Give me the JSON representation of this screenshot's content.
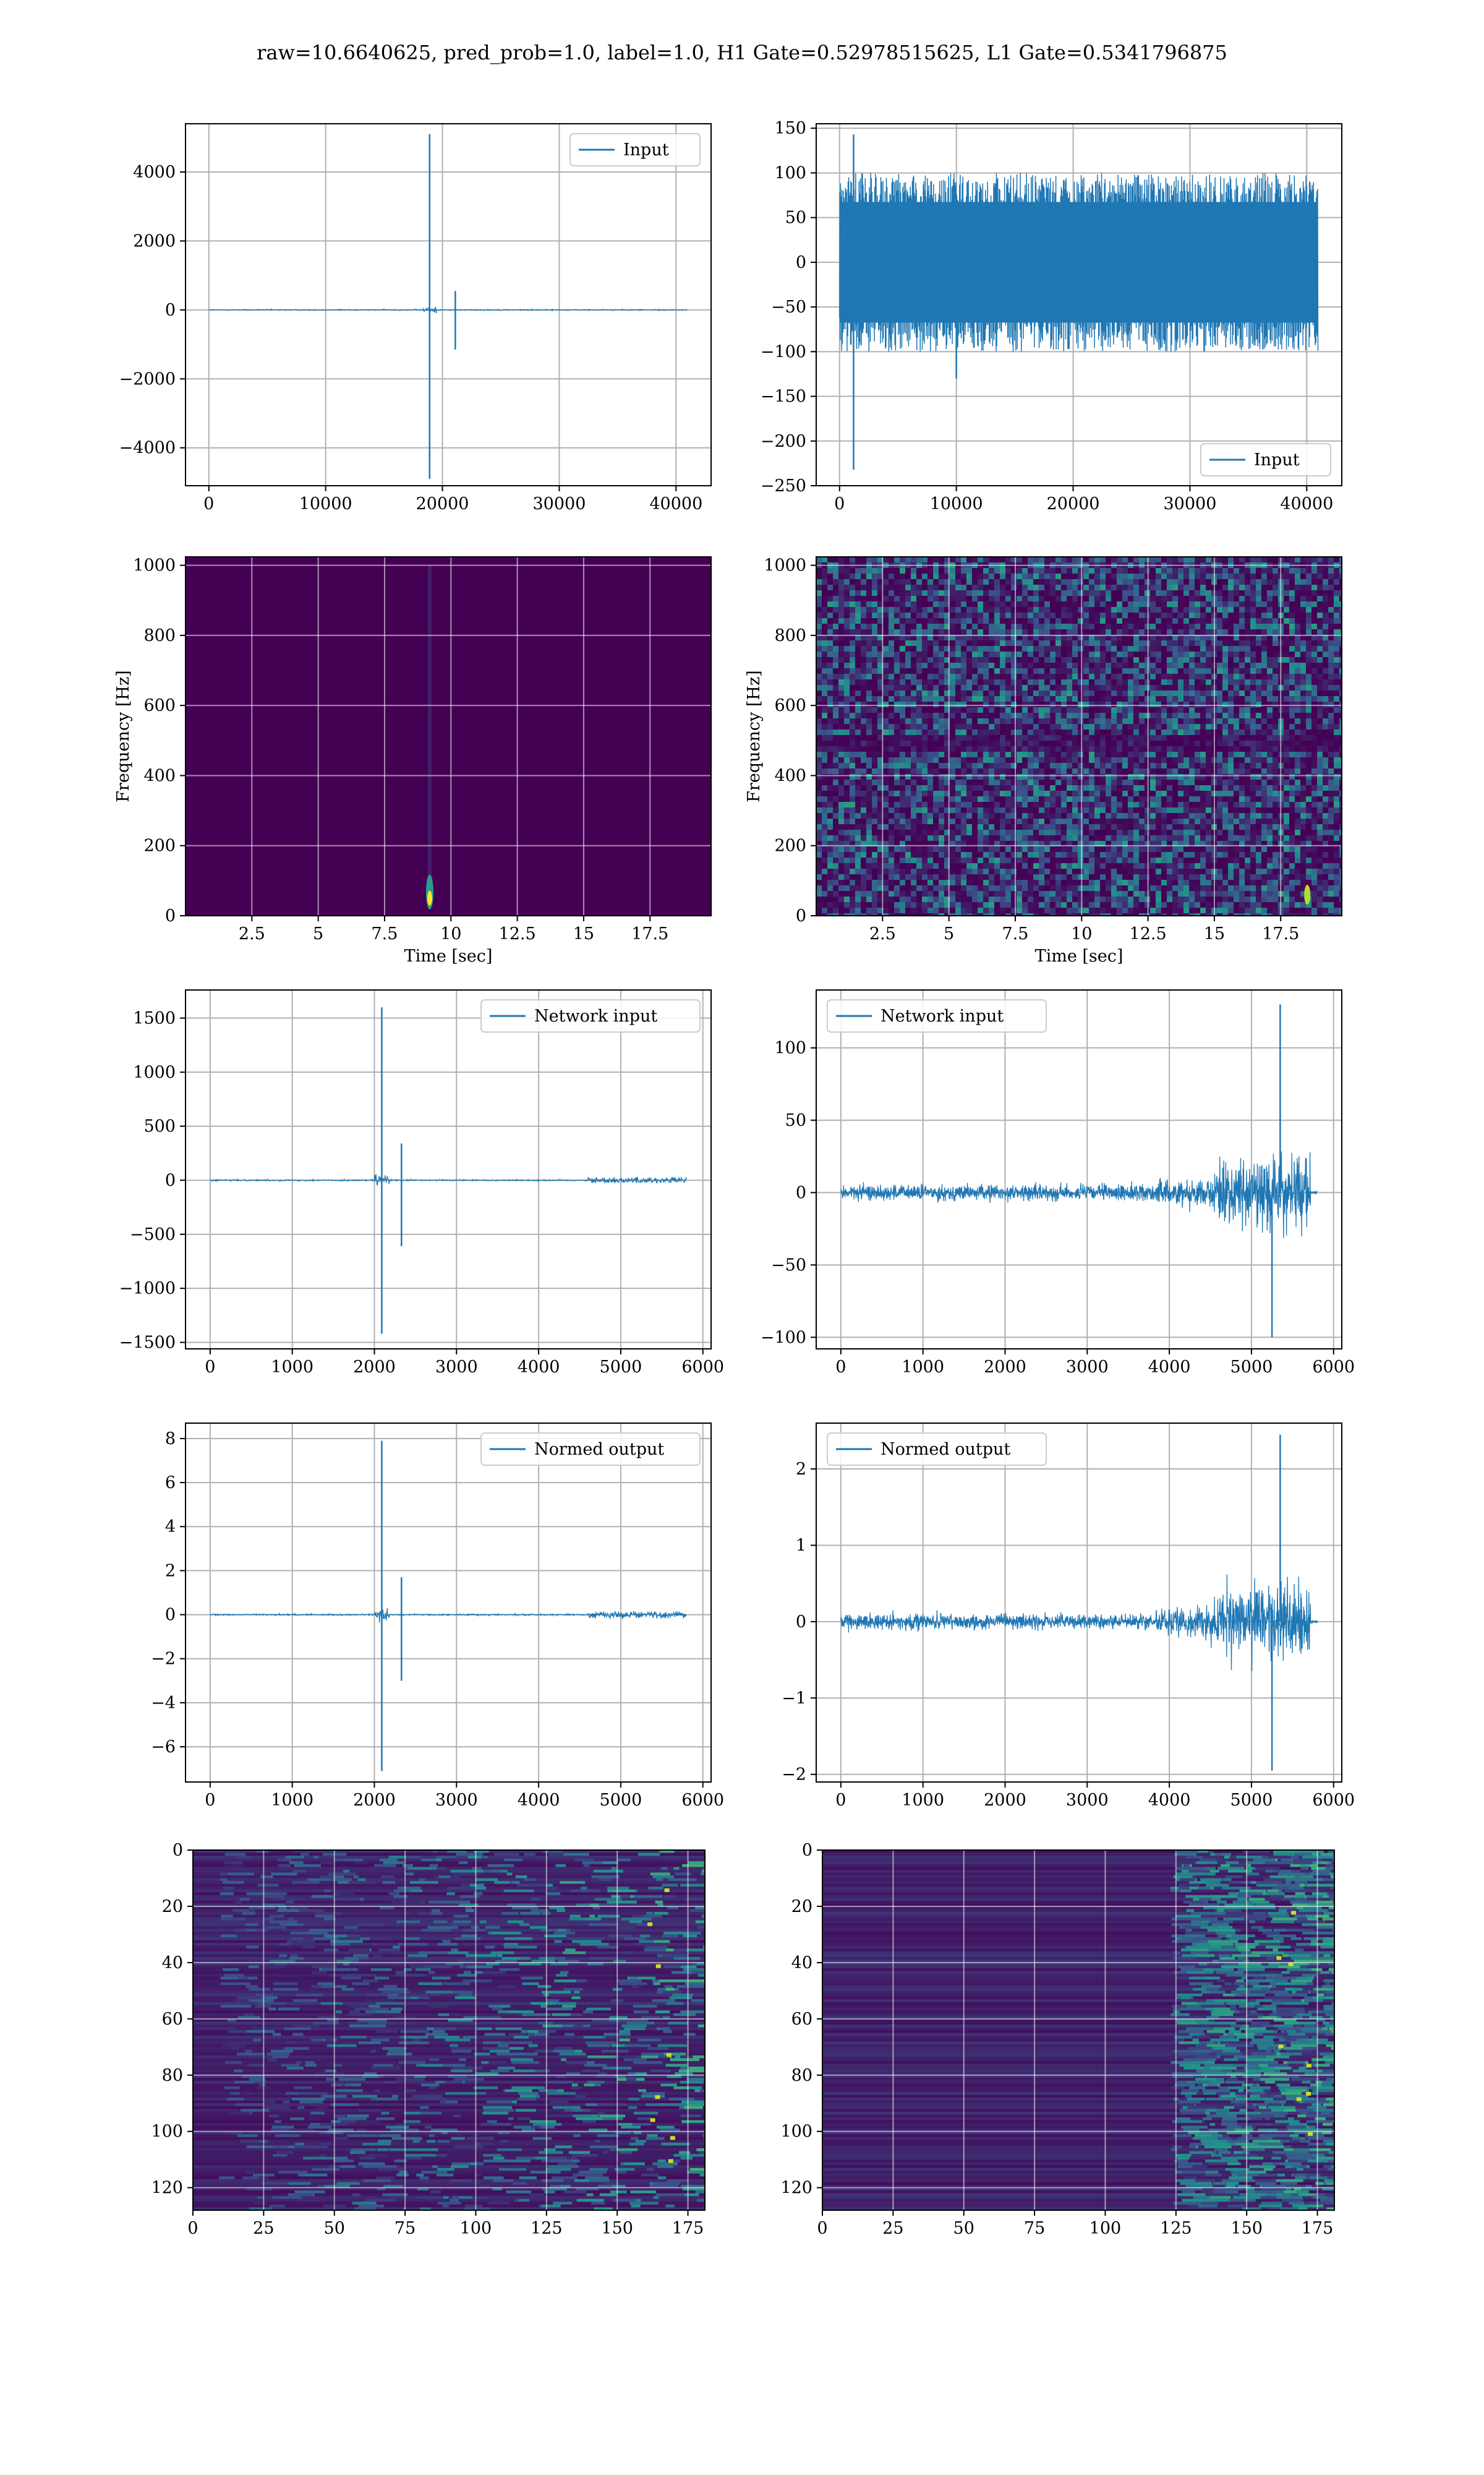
{
  "figure": {
    "suptitle": "raw=10.6640625, pred_prob=1.0, label=1.0, H1 Gate=0.52978515625, L1 Gate=0.5341796875",
    "colors": {
      "line": "#1f77b4",
      "grid": "#b0b0b0",
      "viridis_dark": "#440154"
    }
  },
  "chart_data": [
    {
      "id": "p1",
      "type": "line",
      "legend": "Input",
      "legend_loc": "upper right",
      "xlim": [
        -2000,
        43000
      ],
      "ylim": [
        -5100,
        5400
      ],
      "xticks": [
        0,
        10000,
        20000,
        30000,
        40000
      ],
      "yticks": [
        -4000,
        -2000,
        0,
        2000,
        4000
      ],
      "grid": true,
      "series": [
        {
          "name": "Input",
          "baseline_noise": 40,
          "x_range": [
            0,
            40960
          ],
          "features": [
            {
              "x": 18900,
              "y": 5100
            },
            {
              "x": 18900,
              "y": -4900
            },
            {
              "x": 21100,
              "y": 550
            },
            {
              "x": 21100,
              "y": -1150
            }
          ]
        }
      ]
    },
    {
      "id": "p2",
      "type": "line",
      "legend": "Input",
      "legend_loc": "lower right",
      "xlim": [
        -2000,
        43000
      ],
      "ylim": [
        -250,
        155
      ],
      "xticks": [
        0,
        10000,
        20000,
        30000,
        40000
      ],
      "yticks": [
        -250,
        -200,
        -150,
        -100,
        -50,
        0,
        50,
        100,
        150
      ],
      "grid": true,
      "series": [
        {
          "name": "Input",
          "band": [
            -90,
            90
          ],
          "x_range": [
            0,
            40960
          ],
          "features": [
            {
              "x": 1200,
              "y": 143
            },
            {
              "x": 1200,
              "y": -232
            },
            {
              "x": 10000,
              "y": -130
            }
          ]
        }
      ]
    },
    {
      "id": "p3",
      "type": "heatmap",
      "xlabel": "Time [sec]",
      "ylabel": "Frequency [Hz]",
      "xlim": [
        0,
        19.8
      ],
      "ylim": [
        0,
        1024
      ],
      "xticks": [
        2.5,
        5.0,
        7.5,
        10.0,
        12.5,
        15.0,
        17.5
      ],
      "yticks": [
        0,
        200,
        400,
        600,
        800,
        1000
      ],
      "grid": true,
      "colormap": "viridis",
      "hotspot": {
        "t": 9.2,
        "f": 50
      }
    },
    {
      "id": "p4",
      "type": "heatmap",
      "xlabel": "Time [sec]",
      "ylabel": "Frequency [Hz]",
      "xlim": [
        0,
        19.8
      ],
      "ylim": [
        0,
        1024
      ],
      "xticks": [
        2.5,
        5.0,
        7.5,
        10.0,
        12.5,
        15.0,
        17.5
      ],
      "yticks": [
        0,
        200,
        400,
        600,
        800,
        1000
      ],
      "grid": true,
      "colormap": "viridis",
      "hotspot": {
        "t": 18.5,
        "f": 60
      }
    },
    {
      "id": "p5",
      "type": "line",
      "legend": "Network input",
      "legend_loc": "upper right",
      "xlim": [
        -300,
        6100
      ],
      "ylim": [
        -1560,
        1760
      ],
      "xticks": [
        0,
        1000,
        2000,
        3000,
        4000,
        5000,
        6000
      ],
      "yticks": [
        -1500,
        -1000,
        -500,
        0,
        500,
        1000,
        1500
      ],
      "grid": true,
      "series": [
        {
          "name": "Network input",
          "x_range": [
            0,
            5800
          ],
          "features": [
            {
              "x": 2090,
              "y": 1600
            },
            {
              "x": 2090,
              "y": -1420
            },
            {
              "x": 2330,
              "y": 340
            },
            {
              "x": 2330,
              "y": -610
            }
          ]
        }
      ]
    },
    {
      "id": "p6",
      "type": "line",
      "legend": "Network input",
      "legend_loc": "upper left",
      "xlim": [
        -300,
        6100
      ],
      "ylim": [
        -108,
        140
      ],
      "xticks": [
        0,
        1000,
        2000,
        3000,
        4000,
        5000,
        6000
      ],
      "yticks": [
        -100,
        -50,
        0,
        50,
        100
      ],
      "grid": true,
      "series": [
        {
          "name": "Network input",
          "x_range": [
            0,
            5800
          ],
          "features": [
            {
              "x": 5350,
              "y": 130
            },
            {
              "x": 5250,
              "y": -100
            }
          ]
        }
      ]
    },
    {
      "id": "p7",
      "type": "line",
      "legend": "Normed output",
      "legend_loc": "upper right",
      "xlim": [
        -300,
        6100
      ],
      "ylim": [
        -7.6,
        8.7
      ],
      "xticks": [
        0,
        1000,
        2000,
        3000,
        4000,
        5000,
        6000
      ],
      "yticks": [
        -6,
        -4,
        -2,
        0,
        2,
        4,
        6,
        8
      ],
      "grid": true,
      "series": [
        {
          "name": "Normed output",
          "x_range": [
            0,
            5800
          ],
          "features": [
            {
              "x": 2090,
              "y": 7.9
            },
            {
              "x": 2090,
              "y": -7.1
            },
            {
              "x": 2330,
              "y": 1.7
            },
            {
              "x": 2330,
              "y": -3.0
            }
          ]
        }
      ]
    },
    {
      "id": "p8",
      "type": "line",
      "legend": "Normed output",
      "legend_loc": "upper left",
      "xlim": [
        -300,
        6100
      ],
      "ylim": [
        -2.1,
        2.6
      ],
      "xticks": [
        0,
        1000,
        2000,
        3000,
        4000,
        5000,
        6000
      ],
      "yticks": [
        -2,
        -1,
        0,
        1,
        2
      ],
      "grid": true,
      "series": [
        {
          "name": "Normed output",
          "x_range": [
            0,
            5800
          ],
          "features": [
            {
              "x": 5350,
              "y": 2.45
            },
            {
              "x": 5250,
              "y": -1.95
            }
          ]
        }
      ]
    },
    {
      "id": "p9",
      "type": "heatmap",
      "colormap": "viridis",
      "xlim": [
        0,
        181
      ],
      "ylim": [
        128,
        0
      ],
      "xticks": [
        0,
        25,
        50,
        75,
        100,
        125,
        150,
        175
      ],
      "yticks": [
        0,
        20,
        40,
        60,
        80,
        100,
        120
      ],
      "grid": true
    },
    {
      "id": "p10",
      "type": "heatmap",
      "colormap": "viridis",
      "xlim": [
        0,
        181
      ],
      "ylim": [
        128,
        0
      ],
      "xticks": [
        0,
        25,
        50,
        75,
        100,
        125,
        150,
        175
      ],
      "yticks": [
        0,
        20,
        40,
        60,
        80,
        100,
        120
      ],
      "grid": true
    }
  ]
}
